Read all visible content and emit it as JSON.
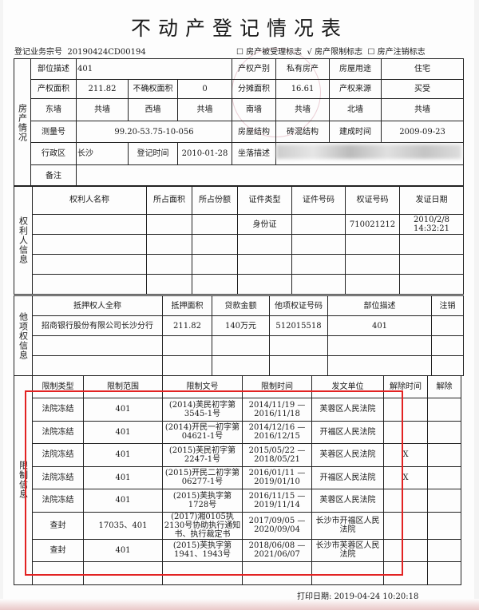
{
  "title": "不动产登记情况表",
  "business_no_label": "登记业务宗号",
  "business_no": "20190424CD00194",
  "flags": [
    {
      "mark": "☐",
      "label": "房产被受理标志"
    },
    {
      "mark": "√",
      "label": "房产限制标志"
    },
    {
      "mark": "☐",
      "label": "房产注销标志"
    }
  ],
  "property": {
    "section": "房产情况",
    "rows": [
      [
        "部位描述",
        "401",
        "产权产别",
        "私有房产",
        "房屋用途",
        "住宅"
      ],
      [
        "产权面积",
        "211.82",
        "不确权面积",
        "0",
        "分摊面积",
        "16.61",
        "产权来源",
        "买受"
      ],
      [
        "东墙",
        "共墙",
        "西墙",
        "共墙",
        "南墙",
        "共墙",
        "北墙",
        "共墙"
      ],
      [
        "测量号",
        "99.20-53.75-10-056",
        "房屋结构",
        "砖混结构",
        "建成时间",
        "2009-09-23"
      ],
      [
        "行政区",
        "长沙",
        "登记时间",
        "2010-01-28",
        "坐落描述"
      ],
      [
        "备注"
      ]
    ]
  },
  "owners": {
    "section": "权利人信息",
    "headers": [
      "权利人名称",
      "所占面积",
      "所占份额",
      "证件类型",
      "证件号码",
      "权证号码",
      "发证日期"
    ],
    "rows": [
      [
        "",
        "",
        "",
        "身份证",
        "",
        "710021212",
        "2010/2/8 14:32:21"
      ],
      [
        "",
        "",
        "",
        "",
        "",
        "",
        ""
      ],
      [
        "",
        "",
        "",
        "",
        "",
        "",
        ""
      ],
      [
        "",
        "",
        "",
        "",
        "",
        "",
        ""
      ]
    ]
  },
  "mortgage": {
    "section": "他项权信息",
    "headers": [
      "抵押权人全称",
      "抵押面积",
      "贷款金额",
      "他项权证号码",
      "部位描述",
      "注销"
    ],
    "rows": [
      [
        "招商银行股份有限公司长沙分行",
        "211.82",
        "140万元",
        "512015518",
        "401",
        ""
      ],
      [
        "",
        "",
        "",
        "",
        "",
        ""
      ],
      [
        "",
        "",
        "",
        "",
        "",
        ""
      ]
    ]
  },
  "restrictions": {
    "section": "限制信息",
    "headers": [
      "限制类型",
      "限制范围",
      "限制文号",
      "限制时间",
      "发文单位",
      "解除时间",
      "解除"
    ],
    "rows": [
      [
        "法院冻结",
        "401",
        "(2014)芙民初字第3545-1号",
        "2014/11/19 — 2016/11/18",
        "芙蓉区人民法院",
        "",
        ""
      ],
      [
        "法院冻结",
        "401",
        "(2014)开民一初字第04621-1号",
        "2014/12/16 — 2016/12/15",
        "开福区人民法院",
        "",
        ""
      ],
      [
        "法院冻结",
        "401",
        "(2015)芙民初字第2247-1号",
        "2015/05/22 — 2018/05/21",
        "芙蓉区人民法院",
        "X",
        ""
      ],
      [
        "法院冻结",
        "401",
        "(2015)开民二初字第06277-1号",
        "2016/01/11 — 2019/01/10",
        "开福区人民法院",
        "X",
        ""
      ],
      [
        "法院冻结",
        "401",
        "(2015)芙执字第1728号",
        "2016/11/15 — 2019/11/14",
        "芙蓉区人民法院",
        "",
        ""
      ],
      [
        "查封",
        "17035、401",
        "(2017)湘0105执2130号协助执行通知书、执行裁定书",
        "2017/09/05 — 2020/09/04",
        "长沙市开福区人民法院",
        "",
        ""
      ],
      [
        "查封",
        "401",
        "(2015)芙执字第1941、1943号",
        "2018/06/08 — 2021/06/07",
        "长沙市芙蓉区人民法院",
        "",
        ""
      ],
      [
        "",
        "",
        "",
        "",
        "",
        "",
        ""
      ]
    ]
  },
  "print_label": "打印日期:",
  "print_date": "2019-04-24 10:20:18",
  "highlight_color": "#e22222"
}
